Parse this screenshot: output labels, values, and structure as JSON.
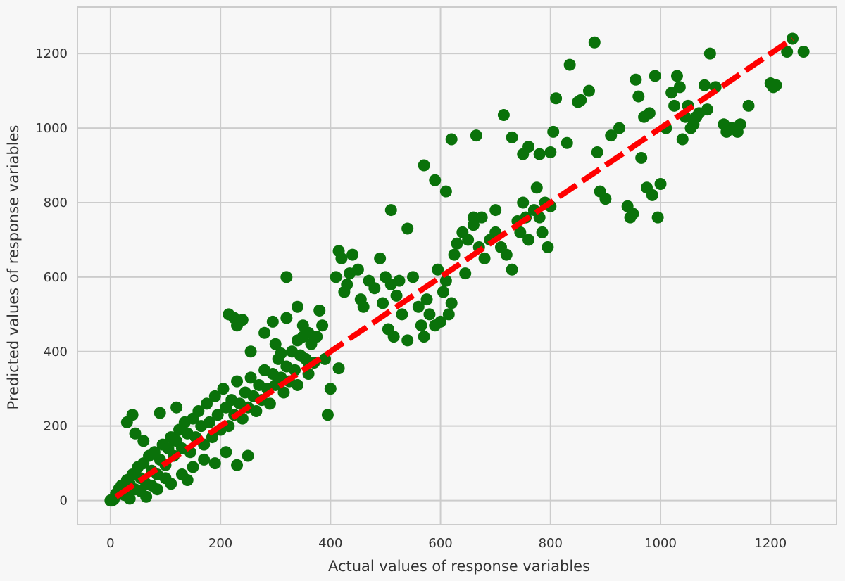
{
  "colors": {
    "background": "#f7f7f7",
    "grid": "#cccccc",
    "points": "#0a720a",
    "reference_line": "#ff0000",
    "text": "#333333"
  },
  "chart_data": {
    "type": "scatter",
    "title": "",
    "xlabel": "Actual values of response variables",
    "ylabel": "Predicted values of response variables",
    "xlim": [
      -60,
      1320
    ],
    "ylim": [
      -65,
      1325
    ],
    "xticks": [
      0,
      200,
      400,
      600,
      800,
      1000,
      1200
    ],
    "yticks": [
      0,
      200,
      400,
      600,
      800,
      1000,
      1200
    ],
    "grid": true,
    "series": [
      {
        "marker": "filled circle",
        "color": "#0a720a",
        "points": [
          [
            0,
            0
          ],
          [
            2,
            0
          ],
          [
            4,
            2
          ],
          [
            6,
            3
          ],
          [
            1,
            1
          ],
          [
            3,
            0
          ],
          [
            10,
            18
          ],
          [
            15,
            30
          ],
          [
            20,
            40
          ],
          [
            25,
            22
          ],
          [
            30,
            55
          ],
          [
            35,
            45
          ],
          [
            40,
            70
          ],
          [
            45,
            30
          ],
          [
            50,
            90
          ],
          [
            55,
            60
          ],
          [
            60,
            100
          ],
          [
            65,
            45
          ],
          [
            70,
            120
          ],
          [
            75,
            80
          ],
          [
            80,
            130
          ],
          [
            85,
            70
          ],
          [
            90,
            110
          ],
          [
            95,
            150
          ],
          [
            100,
            95
          ],
          [
            105,
            140
          ],
          [
            110,
            170
          ],
          [
            115,
            120
          ],
          [
            120,
            160
          ],
          [
            125,
            190
          ],
          [
            130,
            140
          ],
          [
            135,
            210
          ],
          [
            140,
            180
          ],
          [
            145,
            130
          ],
          [
            150,
            220
          ],
          [
            155,
            170
          ],
          [
            160,
            240
          ],
          [
            165,
            200
          ],
          [
            170,
            150
          ],
          [
            175,
            260
          ],
          [
            180,
            210
          ],
          [
            185,
            170
          ],
          [
            190,
            280
          ],
          [
            195,
            230
          ],
          [
            200,
            190
          ],
          [
            205,
            300
          ],
          [
            210,
            250
          ],
          [
            215,
            200
          ],
          [
            220,
            270
          ],
          [
            225,
            230
          ],
          [
            230,
            320
          ],
          [
            235,
            260
          ],
          [
            240,
            220
          ],
          [
            245,
            290
          ],
          [
            250,
            250
          ],
          [
            255,
            330
          ],
          [
            260,
            280
          ],
          [
            265,
            240
          ],
          [
            270,
            310
          ],
          [
            275,
            270
          ],
          [
            280,
            350
          ],
          [
            285,
            300
          ],
          [
            290,
            260
          ],
          [
            295,
            340
          ],
          [
            300,
            310
          ],
          [
            305,
            380
          ],
          [
            310,
            330
          ],
          [
            315,
            290
          ],
          [
            320,
            360
          ],
          [
            325,
            320
          ],
          [
            330,
            400
          ],
          [
            335,
            350
          ],
          [
            340,
            310
          ],
          [
            345,
            390
          ],
          [
            350,
            440
          ],
          [
            355,
            380
          ],
          [
            360,
            340
          ],
          [
            365,
            420
          ],
          [
            370,
            370
          ],
          [
            30,
            210
          ],
          [
            45,
            180
          ],
          [
            40,
            230
          ],
          [
            60,
            160
          ],
          [
            90,
            235
          ],
          [
            120,
            250
          ],
          [
            55,
            25
          ],
          [
            75,
            40
          ],
          [
            100,
            60
          ],
          [
            130,
            70
          ],
          [
            150,
            90
          ],
          [
            170,
            110
          ],
          [
            190,
            100
          ],
          [
            210,
            130
          ],
          [
            230,
            95
          ],
          [
            250,
            120
          ],
          [
            110,
            45
          ],
          [
            140,
            55
          ],
          [
            65,
            10
          ],
          [
            85,
            30
          ],
          [
            35,
            5
          ],
          [
            25,
            15
          ],
          [
            215,
            500
          ],
          [
            225,
            490
          ],
          [
            240,
            485
          ],
          [
            230,
            470
          ],
          [
            255,
            400
          ],
          [
            280,
            450
          ],
          [
            295,
            480
          ],
          [
            300,
            420
          ],
          [
            310,
            395
          ],
          [
            320,
            490
          ],
          [
            340,
            430
          ],
          [
            350,
            470
          ],
          [
            360,
            450
          ],
          [
            375,
            440
          ],
          [
            380,
            510
          ],
          [
            390,
            380
          ],
          [
            400,
            300
          ],
          [
            395,
            230
          ],
          [
            410,
            600
          ],
          [
            415,
            670
          ],
          [
            420,
            650
          ],
          [
            425,
            560
          ],
          [
            430,
            580
          ],
          [
            435,
            610
          ],
          [
            440,
            660
          ],
          [
            450,
            620
          ],
          [
            455,
            540
          ],
          [
            460,
            520
          ],
          [
            470,
            590
          ],
          [
            480,
            570
          ],
          [
            490,
            650
          ],
          [
            495,
            530
          ],
          [
            500,
            600
          ],
          [
            505,
            460
          ],
          [
            510,
            580
          ],
          [
            515,
            440
          ],
          [
            520,
            550
          ],
          [
            525,
            590
          ],
          [
            530,
            500
          ],
          [
            540,
            430
          ],
          [
            550,
            600
          ],
          [
            560,
            520
          ],
          [
            565,
            470
          ],
          [
            570,
            440
          ],
          [
            575,
            540
          ],
          [
            580,
            500
          ],
          [
            590,
            470
          ],
          [
            595,
            620
          ],
          [
            600,
            480
          ],
          [
            605,
            560
          ],
          [
            610,
            590
          ],
          [
            615,
            500
          ],
          [
            620,
            530
          ],
          [
            625,
            660
          ],
          [
            630,
            690
          ],
          [
            640,
            720
          ],
          [
            645,
            610
          ],
          [
            650,
            700
          ],
          [
            660,
            740
          ],
          [
            670,
            680
          ],
          [
            675,
            760
          ],
          [
            680,
            650
          ],
          [
            690,
            700
          ],
          [
            700,
            720
          ],
          [
            710,
            680
          ],
          [
            720,
            660
          ],
          [
            730,
            620
          ],
          [
            740,
            750
          ],
          [
            745,
            720
          ],
          [
            750,
            800
          ],
          [
            755,
            760
          ],
          [
            760,
            700
          ],
          [
            770,
            780
          ],
          [
            775,
            840
          ],
          [
            780,
            760
          ],
          [
            785,
            720
          ],
          [
            790,
            800
          ],
          [
            795,
            680
          ],
          [
            800,
            790
          ],
          [
            385,
            470
          ],
          [
            415,
            355
          ],
          [
            360,
            370
          ],
          [
            340,
            520
          ],
          [
            320,
            600
          ],
          [
            510,
            780
          ],
          [
            540,
            730
          ],
          [
            570,
            900
          ],
          [
            590,
            860
          ],
          [
            610,
            830
          ],
          [
            620,
            970
          ],
          [
            660,
            760
          ],
          [
            665,
            980
          ],
          [
            700,
            780
          ],
          [
            715,
            1035
          ],
          [
            730,
            975
          ],
          [
            750,
            930
          ],
          [
            760,
            950
          ],
          [
            780,
            930
          ],
          [
            800,
            935
          ],
          [
            805,
            990
          ],
          [
            810,
            1080
          ],
          [
            830,
            960
          ],
          [
            835,
            1170
          ],
          [
            850,
            1070
          ],
          [
            855,
            1075
          ],
          [
            870,
            1100
          ],
          [
            880,
            1230
          ],
          [
            885,
            935
          ],
          [
            890,
            830
          ],
          [
            900,
            810
          ],
          [
            910,
            980
          ],
          [
            925,
            1000
          ],
          [
            940,
            790
          ],
          [
            945,
            760
          ],
          [
            950,
            770
          ],
          [
            955,
            1130
          ],
          [
            960,
            1085
          ],
          [
            965,
            920
          ],
          [
            970,
            1030
          ],
          [
            975,
            840
          ],
          [
            980,
            1040
          ],
          [
            985,
            820
          ],
          [
            990,
            1140
          ],
          [
            995,
            760
          ],
          [
            1000,
            850
          ],
          [
            1010,
            1000
          ],
          [
            1020,
            1095
          ],
          [
            1025,
            1060
          ],
          [
            1030,
            1140
          ],
          [
            1035,
            1110
          ],
          [
            1040,
            970
          ],
          [
            1045,
            1030
          ],
          [
            1050,
            1060
          ],
          [
            1055,
            1000
          ],
          [
            1060,
            1010
          ],
          [
            1065,
            1030
          ],
          [
            1070,
            1040
          ],
          [
            1080,
            1115
          ],
          [
            1085,
            1050
          ],
          [
            1090,
            1200
          ],
          [
            1100,
            1110
          ],
          [
            1115,
            1010
          ],
          [
            1120,
            990
          ],
          [
            1130,
            1000
          ],
          [
            1140,
            990
          ],
          [
            1145,
            1010
          ],
          [
            1160,
            1060
          ],
          [
            1200,
            1120
          ],
          [
            1205,
            1110
          ],
          [
            1210,
            1115
          ],
          [
            1230,
            1205
          ],
          [
            1240,
            1240
          ],
          [
            1260,
            1205
          ]
        ]
      }
    ],
    "reference_line": {
      "style": "dashed",
      "color": "#ff0000",
      "points": [
        [
          10,
          10
        ],
        [
          1240,
          1240
        ]
      ]
    }
  }
}
